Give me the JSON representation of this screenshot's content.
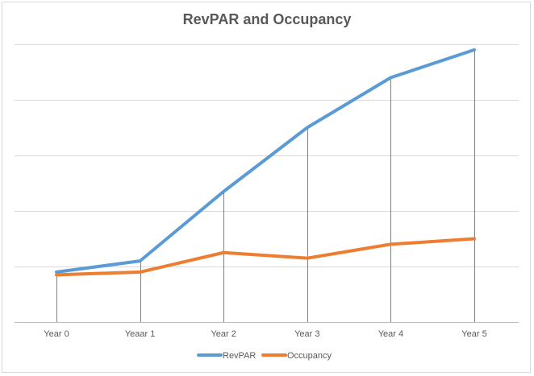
{
  "chart_data": {
    "type": "line",
    "title": "RevPAR and Occupancy",
    "categories": [
      "Year 0",
      "Yeaar 1",
      "Year 2",
      "Year 3",
      "Year 4",
      "Year 5"
    ],
    "series": [
      {
        "name": "RevPAR",
        "color": "#5b9bd5",
        "values": [
          0.9,
          1.1,
          2.35,
          3.5,
          4.4,
          4.9
        ]
      },
      {
        "name": "Occupancy",
        "color": "#ed7d31",
        "values": [
          0.85,
          0.9,
          1.25,
          1.15,
          1.4,
          1.5
        ]
      }
    ],
    "ylim": [
      0,
      5.0
    ],
    "y_gridlines": 5,
    "y_tick_labels_shown": false,
    "drop_lines": true,
    "legend": "bottom",
    "grid": true
  }
}
